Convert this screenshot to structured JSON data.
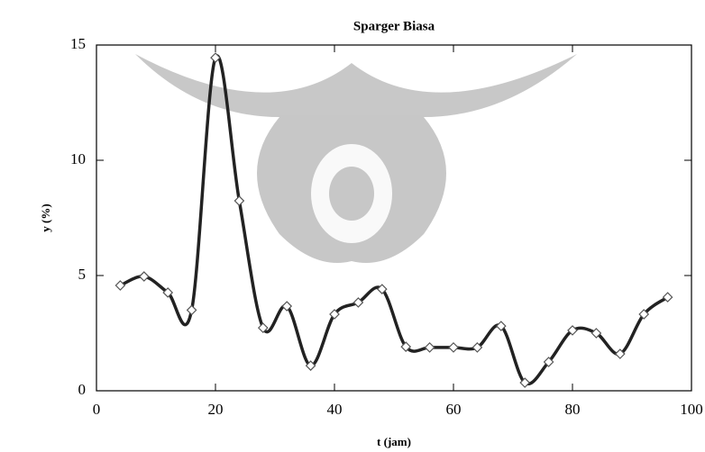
{
  "chart_data": {
    "type": "line",
    "title": "Sparger Biasa",
    "x_label": "t (jam)",
    "y_label": "y (%)",
    "x": [
      4,
      8,
      12,
      16,
      20,
      24,
      28,
      32,
      36,
      40,
      44,
      48,
      52,
      56,
      60,
      64,
      68,
      72,
      76,
      80,
      84,
      88,
      92,
      96
    ],
    "values": [
      4.57,
      4.96,
      4.26,
      3.5,
      14.45,
      8.24,
      2.73,
      3.67,
      1.09,
      3.32,
      3.83,
      4.41,
      1.91,
      1.88,
      1.88,
      1.88,
      2.81,
      0.35,
      1.25,
      2.62,
      2.5,
      1.6,
      3.32,
      4.06
    ],
    "color": "#222222",
    "xlim": [
      0,
      100
    ],
    "xticks": [
      0,
      20,
      40,
      60,
      80,
      100
    ],
    "ylim": [
      0,
      15
    ],
    "yticks": [
      0,
      5,
      10,
      15
    ]
  }
}
